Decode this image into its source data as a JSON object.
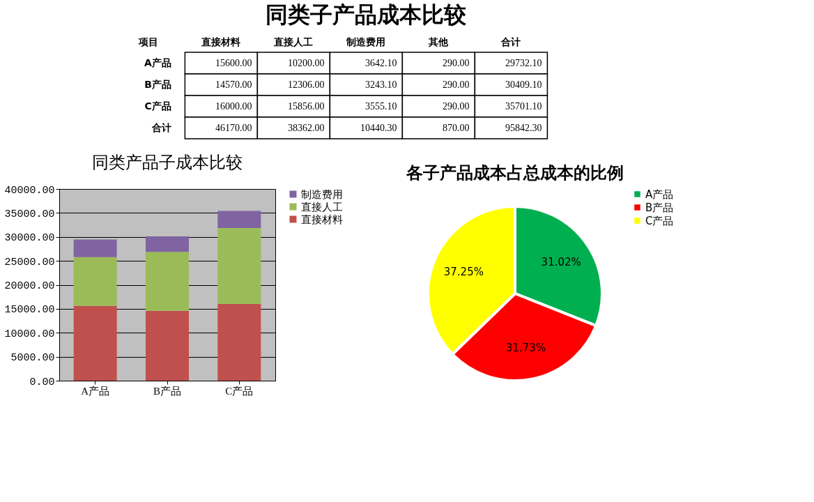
{
  "chart_data": [
    {
      "type": "other",
      "title": "同类子产品成本比较",
      "annotations": [
        "项目"
      ],
      "categories": [
        "直接材料",
        "直接人工",
        "制造费用",
        "其他",
        "合计"
      ],
      "y_categories": [
        "A产品",
        "B产品",
        "C产品",
        "合计"
      ],
      "cell_labels": [
        [
          "15600.00",
          "10200.00",
          "3642.10",
          "290.00",
          "29732.10"
        ],
        [
          "14570.00",
          "12306.00",
          "3243.10",
          "290.00",
          "30409.10"
        ],
        [
          "16000.00",
          "15856.00",
          "3555.10",
          "290.00",
          "35701.10"
        ],
        [
          "46170.00",
          "38362.00",
          "10440.30",
          "870.00",
          "95842.30"
        ]
      ]
    },
    {
      "type": "bar",
      "title": "同类产品子成本比较",
      "stacked": true,
      "categories": [
        "A产品",
        "B产品",
        "C产品"
      ],
      "series": [
        {
          "name": "直接材料",
          "color": "#c0504d",
          "values": [
            15600.0,
            14570.0,
            16000.0
          ]
        },
        {
          "name": "直接人工",
          "color": "#9bbb59",
          "values": [
            10200.0,
            12306.0,
            15856.0
          ]
        },
        {
          "name": "制造费用",
          "color": "#8064a2",
          "values": [
            3642.1,
            3243.1,
            3555.1
          ]
        }
      ],
      "ylim": [
        0,
        40000
      ],
      "yticks": [
        {
          "value": 0,
          "label": "0.00"
        },
        {
          "value": 5000,
          "label": "5000.00"
        },
        {
          "value": 10000,
          "label": "10000.00"
        },
        {
          "value": 15000,
          "label": "15000.00"
        },
        {
          "value": 20000,
          "label": "20000.00"
        },
        {
          "value": 25000,
          "label": "25000.00"
        },
        {
          "value": 30000,
          "label": "30000.00"
        },
        {
          "value": 35000,
          "label": "35000.00"
        },
        {
          "value": 40000,
          "label": "40000.00"
        }
      ],
      "grid": "y",
      "legend": "right"
    },
    {
      "type": "pie",
      "title": "各子产品成本占总成本的比例",
      "categories": [
        "A产品",
        "B产品",
        "C产品"
      ],
      "values": [
        31.02,
        31.73,
        37.25
      ],
      "colors": [
        "#00b050",
        "#ff0000",
        "#ffff00"
      ],
      "value_labels": [
        "31.02%",
        "31.73%",
        "37.25%"
      ],
      "legend": "right"
    }
  ]
}
